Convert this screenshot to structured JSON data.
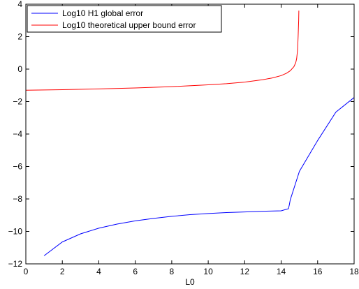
{
  "chart_data": {
    "type": "line",
    "title": "",
    "xlabel": "L0",
    "ylabel": "",
    "xlim": [
      0,
      18
    ],
    "ylim": [
      -12,
      4
    ],
    "xticks": [
      0,
      2,
      4,
      6,
      8,
      10,
      12,
      14,
      16,
      18
    ],
    "yticks": [
      -12,
      -10,
      -8,
      -6,
      -4,
      -2,
      0,
      2,
      4
    ],
    "tick_labels": {
      "x": [
        "0",
        "2",
        "4",
        "6",
        "8",
        "10",
        "12",
        "14",
        "16",
        "18"
      ],
      "y": [
        "−12",
        "−10",
        "−8",
        "−6",
        "−4",
        "−2",
        "0",
        "2",
        "4"
      ]
    },
    "grid": false,
    "legend_position": "top-left",
    "series": [
      {
        "name": "Log10 H1 global error",
        "color": "#0000ff",
        "x": [
          1,
          2,
          3,
          4,
          5,
          6,
          7,
          8,
          9,
          10,
          11,
          12,
          13,
          14,
          14.4,
          14.45,
          14.5,
          15,
          16,
          17,
          18
        ],
        "y": [
          -11.5,
          -10.65,
          -10.15,
          -9.8,
          -9.55,
          -9.35,
          -9.2,
          -9.07,
          -8.97,
          -8.9,
          -8.84,
          -8.8,
          -8.76,
          -8.73,
          -8.6,
          -8.35,
          -8.05,
          -6.3,
          -4.4,
          -2.65,
          -1.75
        ]
      },
      {
        "name": "Log10 theoretical upper bound error",
        "color": "#ff0000",
        "x": [
          0,
          2,
          4,
          6,
          8,
          10,
          11,
          12,
          13,
          13.5,
          14,
          14.3,
          14.5,
          14.7,
          14.8,
          14.85,
          14.9,
          14.93,
          14.96,
          14.97
        ],
        "y": [
          -1.3,
          -1.27,
          -1.22,
          -1.16,
          -1.08,
          -0.97,
          -0.9,
          -0.8,
          -0.65,
          -0.55,
          -0.4,
          -0.25,
          -0.1,
          0.15,
          0.4,
          0.65,
          1.2,
          2.0,
          3.0,
          3.6
        ]
      }
    ]
  }
}
